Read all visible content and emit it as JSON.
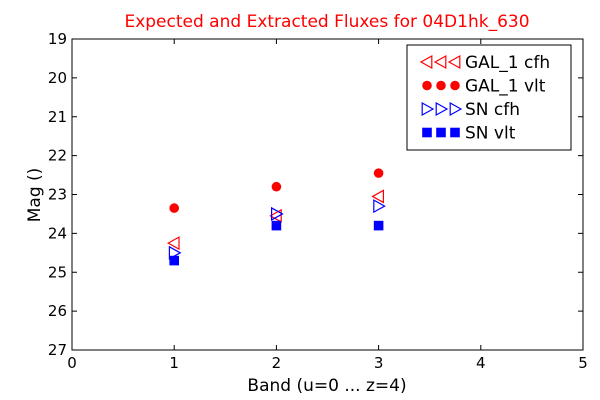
{
  "chart_data": {
    "type": "scatter",
    "title": "Expected and Extracted Fluxes for 04D1hk_630",
    "title_color": "#ff0000",
    "xlabel": "Band (u=0 ... z=4)",
    "ylabel": "Mag ()",
    "xlim": [
      0,
      5
    ],
    "ylim": [
      27,
      19
    ],
    "y_inverted": true,
    "xticks": [
      "0",
      "1",
      "2",
      "3",
      "4",
      "5"
    ],
    "yticks": [
      "19",
      "20",
      "21",
      "22",
      "23",
      "24",
      "25",
      "26",
      "27"
    ],
    "grid": false,
    "legend_position": "top-right",
    "series": [
      {
        "name": "GAL_1 cfh",
        "marker": "triangle-left-open",
        "color": "#ff0000",
        "points": [
          [
            1,
            24.25
          ],
          [
            2,
            23.55
          ],
          [
            3,
            23.05
          ]
        ]
      },
      {
        "name": "GAL_1 vlt",
        "marker": "circle-filled",
        "color": "#ff0000",
        "points": [
          [
            1,
            23.35
          ],
          [
            2,
            22.8
          ],
          [
            3,
            22.45
          ]
        ]
      },
      {
        "name": "SN cfh",
        "marker": "triangle-right-open",
        "color": "#0000ff",
        "points": [
          [
            1,
            24.5
          ],
          [
            2,
            23.5
          ],
          [
            3,
            23.3
          ]
        ]
      },
      {
        "name": "SN vlt",
        "marker": "square-filled",
        "color": "#0000ff",
        "points": [
          [
            1,
            24.7
          ],
          [
            2,
            23.8
          ],
          [
            3,
            23.8
          ]
        ]
      }
    ]
  }
}
